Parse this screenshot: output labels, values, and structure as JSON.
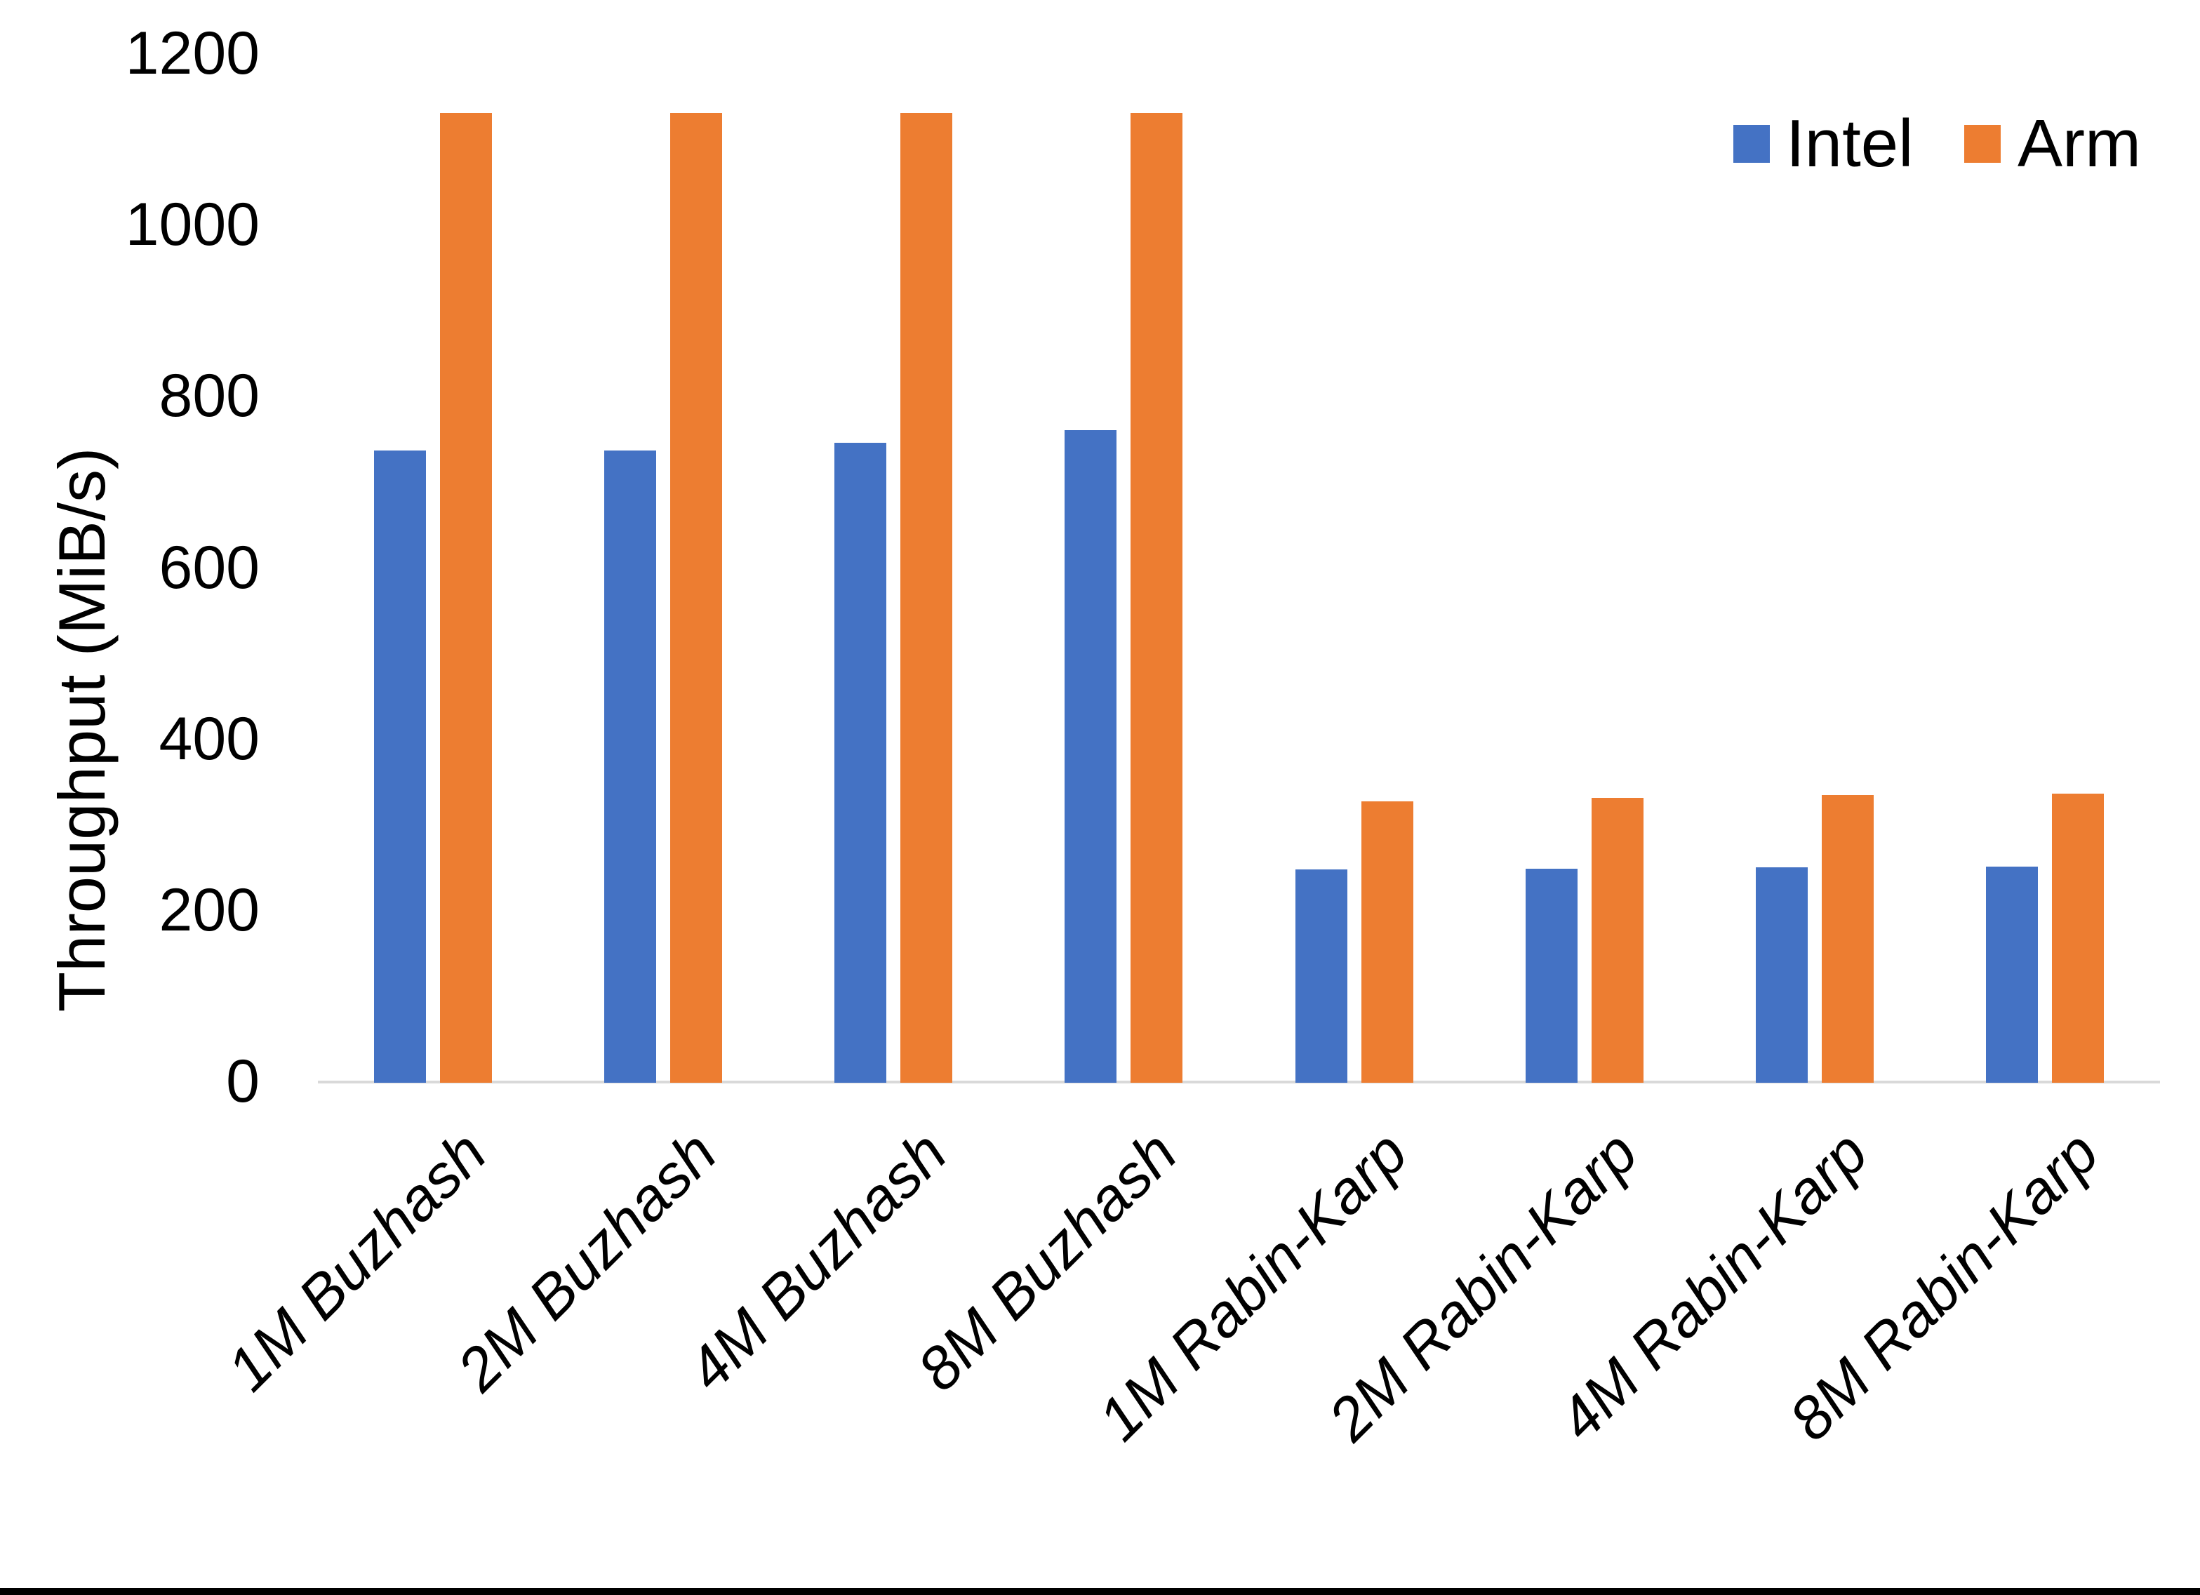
{
  "chart_data": {
    "type": "bar",
    "title": "",
    "xlabel": "",
    "ylabel": "Throughput (MiB/s)",
    "ylim": [
      0,
      1200
    ],
    "ytick_interval": 200,
    "ytick_labels": [
      "0",
      "200",
      "400",
      "600",
      "800",
      "1000",
      "1200"
    ],
    "grid": false,
    "legend_position": "top-right",
    "categories": [
      "1M Buzhash",
      "2M Buzhash",
      "4M Buzhash",
      "8M Buzhash",
      "1M Rabin-Karp",
      "2M Rabin-Karp",
      "4M Rabin-Karp",
      "8M Rabin-Karp"
    ],
    "series": [
      {
        "name": "Intel",
        "color": "#4472C4",
        "values": [
          736,
          736,
          745,
          760,
          247,
          248,
          250,
          251
        ]
      },
      {
        "name": "Arm",
        "color": "#ED7D31",
        "values": [
          1130,
          1130,
          1130,
          1130,
          327,
          331,
          334,
          336
        ]
      }
    ],
    "axis_line_color": "#D9D9D9"
  }
}
